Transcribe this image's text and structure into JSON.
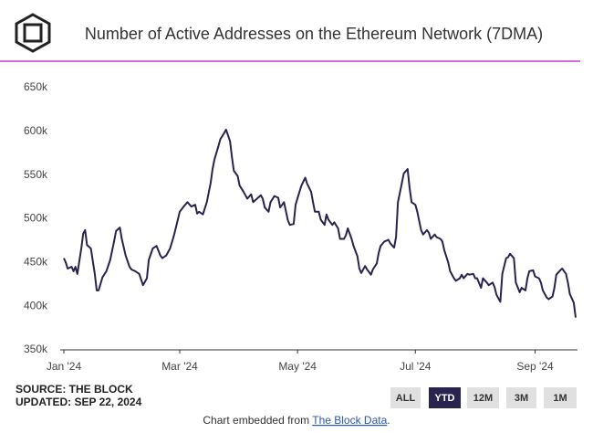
{
  "header": {
    "title": "Number of Active Addresses on the Ethereum Network (7DMA)"
  },
  "chart_data": {
    "type": "line",
    "color": "#28234f",
    "x": [
      0,
      1,
      2,
      4,
      5,
      6,
      7,
      9,
      10,
      11,
      12,
      14,
      16,
      17,
      18,
      20,
      22,
      24,
      26,
      27,
      29,
      30,
      32,
      34,
      35,
      37,
      39,
      41,
      43,
      44,
      46,
      48,
      50,
      51,
      53,
      55,
      57,
      59,
      60,
      62,
      64,
      66,
      68,
      69,
      70,
      72,
      74,
      76,
      77,
      78,
      80,
      81,
      83,
      84,
      86,
      87,
      88,
      90,
      91,
      93,
      94,
      95,
      97,
      98,
      100,
      102,
      103,
      104,
      106,
      107,
      109,
      111,
      112,
      114,
      116,
      117,
      119,
      120,
      122,
      123,
      125,
      126,
      128,
      129,
      130,
      132,
      133,
      135,
      136,
      137,
      139,
      140,
      142,
      143,
      145,
      146,
      147,
      149,
      150,
      152,
      153,
      154,
      156,
      157,
      159,
      160,
      162,
      163,
      164,
      166,
      168,
      169,
      171,
      172,
      173,
      175,
      176,
      178,
      179,
      180,
      182,
      183,
      185,
      186,
      188,
      189,
      190,
      192,
      193,
      195,
      196,
      197,
      199,
      200,
      202,
      203,
      205,
      206,
      207,
      209,
      210,
      212,
      213,
      214,
      216,
      217,
      219,
      220,
      222,
      223,
      224,
      226,
      227,
      229,
      230,
      231,
      233,
      234,
      236,
      237,
      239,
      240,
      241,
      243,
      244,
      246,
      247,
      248,
      250,
      251,
      253,
      254,
      255,
      257,
      258,
      260,
      261,
      262,
      264,
      265
    ],
    "values": [
      455000,
      450000,
      443000,
      445000,
      440000,
      445000,
      437000,
      466000,
      483000,
      487000,
      470000,
      466000,
      437000,
      418000,
      418000,
      433000,
      440000,
      453000,
      474000,
      486000,
      490000,
      477000,
      458000,
      445000,
      442000,
      440000,
      437000,
      424000,
      432000,
      453000,
      466000,
      469000,
      458000,
      455000,
      458000,
      466000,
      481000,
      499000,
      508000,
      514000,
      519000,
      514000,
      516000,
      506000,
      508000,
      505000,
      519000,
      541000,
      557000,
      568000,
      583000,
      591000,
      598000,
      602000,
      589000,
      571000,
      555000,
      549000,
      538000,
      531000,
      527000,
      523000,
      528000,
      519000,
      523000,
      527000,
      523000,
      513000,
      508000,
      519000,
      526000,
      524000,
      513000,
      519000,
      498000,
      493000,
      494000,
      516000,
      531000,
      538000,
      547000,
      540000,
      531000,
      519000,
      508000,
      508000,
      499000,
      493000,
      505000,
      499000,
      493000,
      496000,
      489000,
      477000,
      477000,
      481000,
      489000,
      477000,
      469000,
      457000,
      443000,
      438000,
      446000,
      442000,
      436000,
      442000,
      449000,
      461000,
      469000,
      474000,
      476000,
      472000,
      467000,
      479000,
      519000,
      541000,
      552000,
      557000,
      536000,
      519000,
      516000,
      508000,
      487000,
      482000,
      487000,
      484000,
      477000,
      482000,
      479000,
      477000,
      474000,
      464000,
      450000,
      440000,
      432000,
      429000,
      432000,
      436000,
      432000,
      437000,
      436000,
      437000,
      432000,
      432000,
      421000,
      432000,
      427000,
      424000,
      427000,
      422000,
      413000,
      405000,
      437000,
      455000,
      456000,
      460000,
      455000,
      427000,
      416000,
      421000,
      418000,
      432000,
      440000,
      441000,
      434000,
      432000,
      427000,
      418000,
      410000,
      408000,
      411000,
      421000,
      436000,
      441000,
      443000,
      437000,
      427000,
      414000,
      404000,
      387000
    ],
    "xlim": [
      0,
      265
    ],
    "xticks": [
      {
        "value": 0,
        "label": "Jan '24"
      },
      {
        "value": 60,
        "label": "Mar '24"
      },
      {
        "value": 121,
        "label": "May '24"
      },
      {
        "value": 182,
        "label": "Jul '24"
      },
      {
        "value": 244,
        "label": "Sep '24"
      }
    ],
    "ylim": [
      350000,
      650000
    ],
    "yticks": [
      {
        "value": 350000,
        "label": "350k"
      },
      {
        "value": 400000,
        "label": "400k"
      },
      {
        "value": 450000,
        "label": "450k"
      },
      {
        "value": 500000,
        "label": "500k"
      },
      {
        "value": 550000,
        "label": "550k"
      },
      {
        "value": 600000,
        "label": "600k"
      },
      {
        "value": 650000,
        "label": "650k"
      }
    ],
    "grid": false
  },
  "source": {
    "line1": "SOURCE: THE BLOCK",
    "line2": "UPDATED: SEP 22, 2024"
  },
  "buttons": [
    "ALL",
    "YTD",
    "12M",
    "3M",
    "1M"
  ],
  "active_button": "YTD",
  "footer": {
    "prefix": "Chart embedded from",
    "link": "The Block Data",
    "suffix": "."
  }
}
